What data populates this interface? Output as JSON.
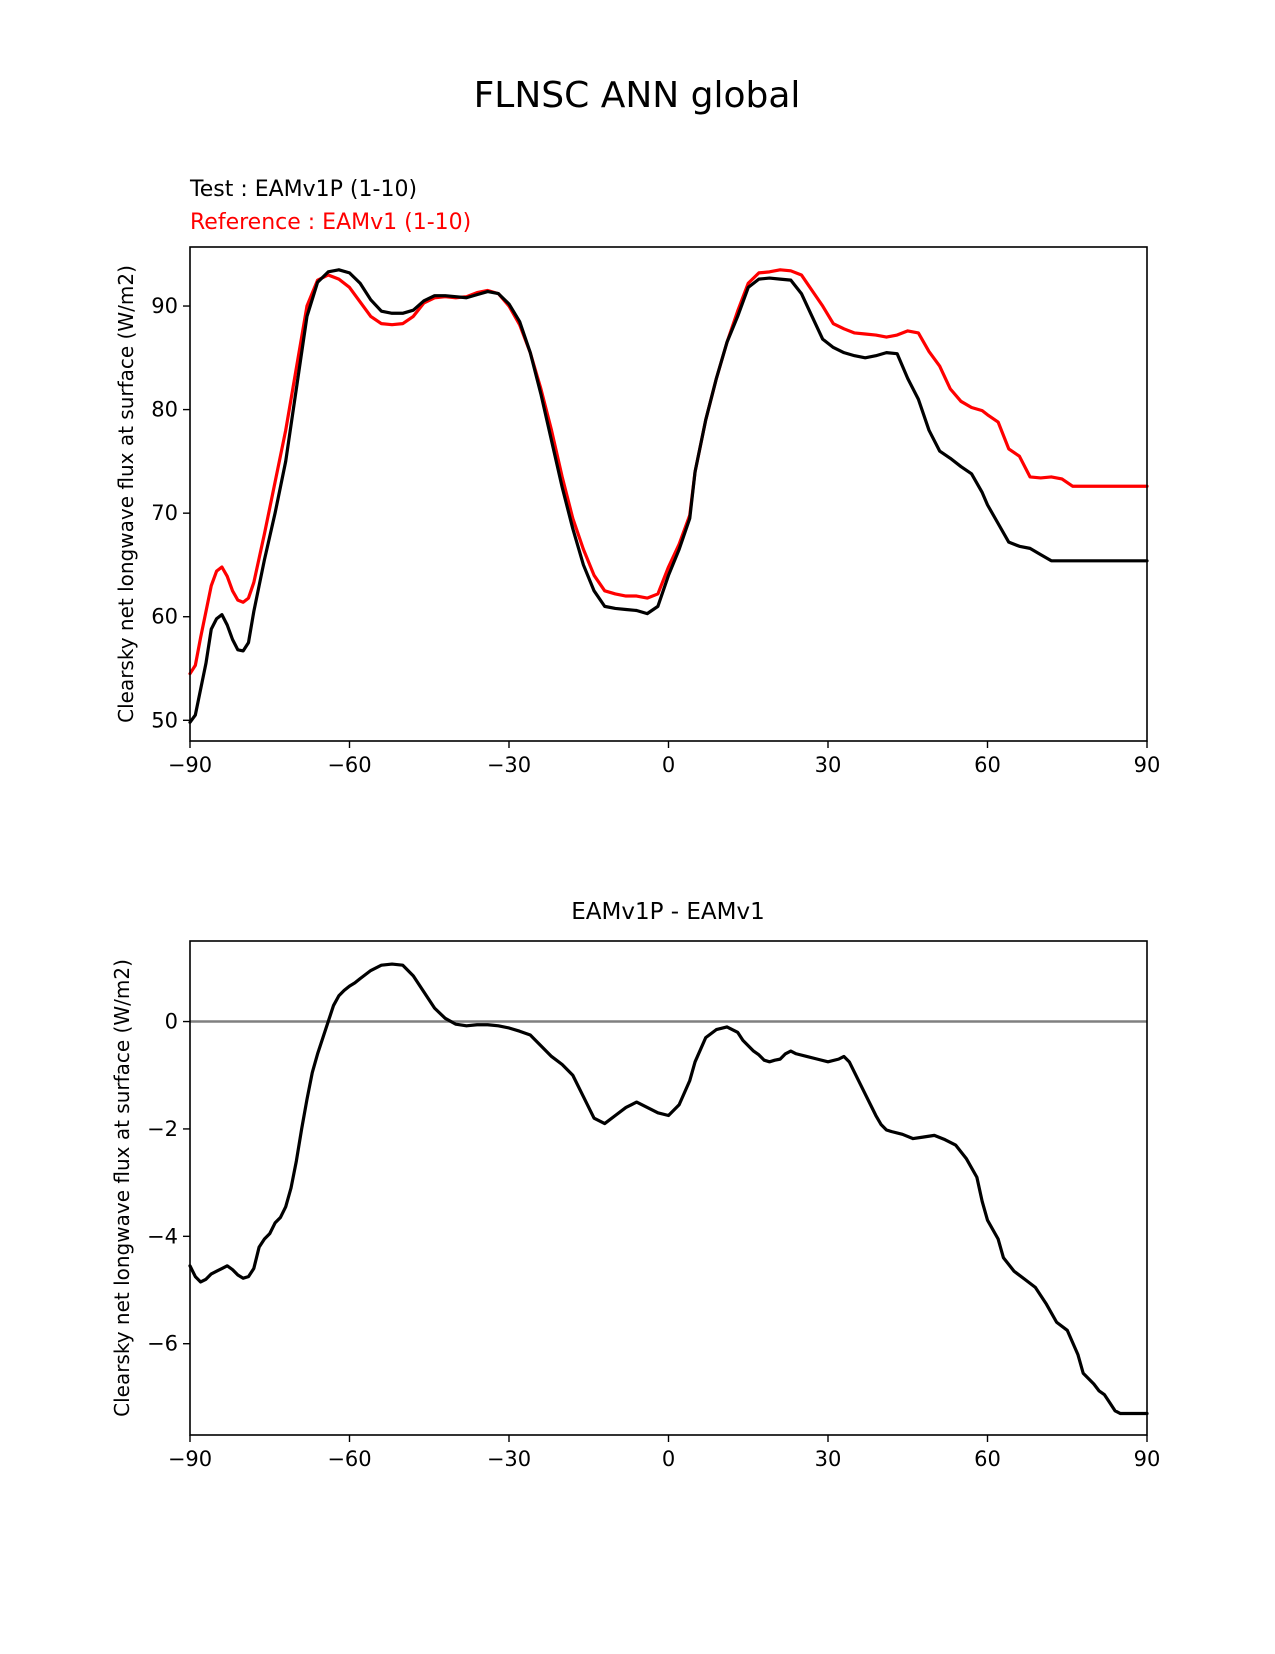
{
  "figure_title": "FLNSC ANN global",
  "chart_data": [
    {
      "type": "line",
      "title": "",
      "subtitle_lines": [
        {
          "text": "Test : EAMv1P (1-10)",
          "color": "#000000"
        },
        {
          "text": "Reference : EAMv1 (1-10)",
          "color": "#ff0000"
        }
      ],
      "xlabel": "",
      "ylabel": "Clearsky net longwave flux at surface (W/m2)",
      "xlim": [
        -90,
        90
      ],
      "ylim": [
        48,
        95.7
      ],
      "xticks": [
        -90,
        -60,
        -30,
        0,
        30,
        60,
        90
      ],
      "xtick_labels": [
        "−90",
        "−60",
        "−30",
        "0",
        "30",
        "60",
        "90"
      ],
      "yticks": [
        50,
        60,
        70,
        80,
        90
      ],
      "ytick_labels": [
        "50",
        "60",
        "70",
        "80",
        "90"
      ],
      "grid": false,
      "series": [
        {
          "color": "#ff0000",
          "x": [
            -90,
            -89,
            -88,
            -87,
            -86,
            -85,
            -84,
            -83,
            -82,
            -81,
            -80,
            -79,
            -78,
            -76,
            -74,
            -72,
            -70,
            -68,
            -66,
            -64,
            -62,
            -60,
            -58,
            -56,
            -54,
            -52,
            -50,
            -48,
            -46,
            -44,
            -42,
            -40,
            -38,
            -36,
            -34,
            -32,
            -30,
            -28,
            -26,
            -24,
            -22,
            -20,
            -18,
            -16,
            -14,
            -12,
            -10,
            -8,
            -6,
            -4,
            -2,
            0,
            2,
            4,
            5,
            7,
            9,
            11,
            13,
            15,
            17,
            19,
            21,
            23,
            25,
            27,
            29,
            31,
            33,
            35,
            37,
            39,
            41,
            43,
            45,
            47,
            49,
            51,
            53,
            55,
            57,
            59,
            60,
            62,
            64,
            66,
            68,
            70,
            72,
            74,
            76,
            78,
            80,
            82,
            84,
            86,
            88,
            90
          ],
          "y": [
            54.5,
            55.3,
            58.0,
            60.5,
            63.0,
            64.4,
            64.8,
            63.9,
            62.5,
            61.6,
            61.4,
            61.8,
            63.3,
            68.0,
            73.0,
            78.0,
            84.0,
            90.0,
            92.5,
            93.0,
            92.6,
            91.8,
            90.4,
            89.0,
            88.3,
            88.2,
            88.3,
            89.0,
            90.3,
            90.8,
            90.9,
            90.8,
            90.9,
            91.3,
            91.5,
            91.2,
            90.0,
            88.2,
            85.5,
            82.0,
            78.0,
            73.5,
            69.5,
            66.5,
            64.0,
            62.5,
            62.2,
            62.0,
            62.0,
            61.8,
            62.2,
            64.8,
            67.0,
            69.8,
            74.0,
            79.0,
            83.0,
            86.5,
            89.5,
            92.2,
            93.2,
            93.3,
            93.5,
            93.4,
            93.0,
            91.5,
            90.0,
            88.3,
            87.8,
            87.4,
            87.3,
            87.2,
            87.0,
            87.2,
            87.6,
            87.4,
            85.6,
            84.2,
            82.0,
            80.8,
            80.2,
            79.9,
            79.5,
            78.8,
            76.2,
            75.5,
            73.5,
            73.4,
            73.5,
            73.3,
            72.6,
            72.6,
            72.6,
            72.6,
            72.6,
            72.6,
            72.6,
            72.6
          ],
          "line_width": 3.2
        },
        {
          "color": "#000000",
          "x": [
            -90,
            -89,
            -88,
            -87,
            -86,
            -85,
            -84,
            -83,
            -82,
            -81,
            -80,
            -79,
            -78,
            -76,
            -74,
            -72,
            -70,
            -68,
            -66,
            -64,
            -62,
            -60,
            -58,
            -56,
            -54,
            -52,
            -50,
            -48,
            -46,
            -44,
            -42,
            -40,
            -38,
            -36,
            -34,
            -32,
            -30,
            -28,
            -26,
            -24,
            -22,
            -20,
            -18,
            -16,
            -14,
            -12,
            -10,
            -8,
            -6,
            -4,
            -2,
            0,
            2,
            4,
            5,
            7,
            9,
            11,
            13,
            15,
            17,
            19,
            21,
            23,
            25,
            27,
            29,
            31,
            33,
            35,
            37,
            39,
            41,
            43,
            45,
            47,
            49,
            51,
            53,
            55,
            57,
            59,
            60,
            62,
            64,
            66,
            68,
            70,
            72,
            74,
            76,
            78,
            80,
            82,
            84,
            86,
            88,
            90
          ],
          "y": [
            49.8,
            50.5,
            53.0,
            55.5,
            58.8,
            59.8,
            60.2,
            59.2,
            57.8,
            56.8,
            56.7,
            57.5,
            60.5,
            65.5,
            70.0,
            75.0,
            82.0,
            89.0,
            92.3,
            93.3,
            93.5,
            93.2,
            92.2,
            90.6,
            89.5,
            89.3,
            89.3,
            89.6,
            90.5,
            91.0,
            91.0,
            90.9,
            90.8,
            91.1,
            91.4,
            91.2,
            90.2,
            88.5,
            85.5,
            81.5,
            77.0,
            72.5,
            68.5,
            65.0,
            62.5,
            61.0,
            60.8,
            60.7,
            60.6,
            60.3,
            61.0,
            64.0,
            66.5,
            69.5,
            74.0,
            79.0,
            83.0,
            86.5,
            89.0,
            91.8,
            92.6,
            92.7,
            92.6,
            92.5,
            91.2,
            89.0,
            86.8,
            86.0,
            85.5,
            85.2,
            85.0,
            85.2,
            85.5,
            85.4,
            83.0,
            81.0,
            78.0,
            76.0,
            75.3,
            74.5,
            73.8,
            72.0,
            70.8,
            69.0,
            67.2,
            66.8,
            66.6,
            66.0,
            65.4,
            65.4,
            65.4,
            65.4,
            65.4,
            65.4,
            65.4,
            65.4,
            65.4,
            65.4
          ],
          "line_width": 3.2
        }
      ]
    },
    {
      "type": "line",
      "title": "EAMv1P - EAMv1",
      "xlabel": "",
      "ylabel": "Clearsky net longwave flux at surface (W/m2)",
      "xlim": [
        -90,
        90
      ],
      "ylim": [
        -7.7,
        1.5
      ],
      "xticks": [
        -90,
        -60,
        -30,
        0,
        30,
        60,
        90
      ],
      "xtick_labels": [
        "−90",
        "−60",
        "−30",
        "0",
        "30",
        "60",
        "90"
      ],
      "yticks": [
        -6,
        -4,
        -2,
        0
      ],
      "ytick_labels": [
        "−6",
        "−4",
        "−2",
        "0"
      ],
      "grid": false,
      "zero_line": {
        "y": 0,
        "color": "#808080"
      },
      "series": [
        {
          "color": "#000000",
          "x": [
            -90,
            -89,
            -88,
            -87,
            -86,
            -85,
            -84,
            -83,
            -82,
            -81,
            -80,
            -79,
            -78,
            -77,
            -76,
            -75,
            -74,
            -73,
            -72,
            -71,
            -70,
            -69,
            -68,
            -67,
            -66,
            -65,
            -64,
            -63,
            -62,
            -61,
            -60,
            -59,
            -58,
            -56,
            -54,
            -52,
            -50,
            -48,
            -46,
            -44,
            -42,
            -40,
            -38,
            -36,
            -34,
            -32,
            -30,
            -28,
            -26,
            -24,
            -22,
            -20,
            -18,
            -16,
            -14,
            -12,
            -10,
            -8,
            -7,
            -6,
            -4,
            -2,
            0,
            2,
            4,
            5,
            7,
            9,
            11,
            13,
            14,
            15,
            16,
            17,
            18,
            19,
            20,
            21,
            22,
            23,
            24,
            26,
            28,
            30,
            32,
            33,
            34,
            35,
            36,
            37,
            38,
            39,
            40,
            41,
            42,
            44,
            46,
            48,
            50,
            52,
            54,
            56,
            58,
            59,
            60,
            62,
            63,
            65,
            67,
            69,
            71,
            73,
            75,
            77,
            78,
            80,
            81,
            82,
            83,
            84,
            85,
            86,
            87,
            88,
            89,
            90
          ],
          "y": [
            -4.55,
            -4.75,
            -4.85,
            -4.8,
            -4.7,
            -4.65,
            -4.6,
            -4.55,
            -4.62,
            -4.72,
            -4.78,
            -4.75,
            -4.6,
            -4.2,
            -4.05,
            -3.95,
            -3.75,
            -3.65,
            -3.45,
            -3.1,
            -2.6,
            -2.0,
            -1.45,
            -0.95,
            -0.6,
            -0.3,
            0.0,
            0.3,
            0.48,
            0.58,
            0.66,
            0.72,
            0.8,
            0.95,
            1.05,
            1.07,
            1.05,
            0.85,
            0.55,
            0.25,
            0.06,
            -0.05,
            -0.08,
            -0.06,
            -0.06,
            -0.08,
            -0.12,
            -0.18,
            -0.25,
            -0.45,
            -0.65,
            -0.8,
            -1.0,
            -1.4,
            -1.8,
            -1.9,
            -1.75,
            -1.6,
            -1.55,
            -1.5,
            -1.6,
            -1.7,
            -1.75,
            -1.55,
            -1.1,
            -0.75,
            -0.3,
            -0.15,
            -0.1,
            -0.2,
            -0.35,
            -0.45,
            -0.55,
            -0.62,
            -0.72,
            -0.75,
            -0.72,
            -0.7,
            -0.6,
            -0.55,
            -0.6,
            -0.65,
            -0.7,
            -0.75,
            -0.7,
            -0.65,
            -0.75,
            -0.95,
            -1.15,
            -1.35,
            -1.55,
            -1.75,
            -1.92,
            -2.02,
            -2.05,
            -2.1,
            -2.18,
            -2.15,
            -2.12,
            -2.2,
            -2.3,
            -2.55,
            -2.9,
            -3.35,
            -3.7,
            -4.05,
            -4.4,
            -4.65,
            -4.8,
            -4.95,
            -5.25,
            -5.6,
            -5.75,
            -6.2,
            -6.55,
            -6.75,
            -6.88,
            -6.95,
            -7.1,
            -7.25,
            -7.3,
            -7.3,
            -7.3,
            -7.3,
            -7.3,
            -7.3
          ],
          "line_width": 3.2
        }
      ]
    }
  ]
}
